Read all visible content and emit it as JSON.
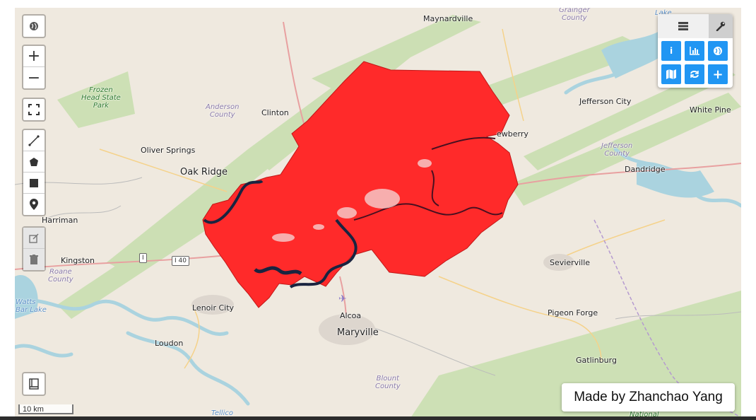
{
  "credit": "Made by Zhanchao Yang",
  "scale_label": "10 km",
  "controls": {
    "basemap": "globe-icon",
    "zoom_in": "+",
    "zoom_out": "−",
    "fullscreen": "fullscreen-icon",
    "draw_tools": [
      "polyline-icon",
      "polygon-icon",
      "rectangle-icon",
      "marker-icon"
    ],
    "edit_tools": [
      "edit-icon",
      "trash-icon"
    ],
    "print": "print-icon"
  },
  "toolbox": {
    "tabs": [
      "layers-icon",
      "wrench-icon"
    ],
    "tools": [
      "info-icon",
      "chart-icon",
      "globe-icon",
      "map-icon",
      "refresh-icon",
      "plus-icon"
    ]
  },
  "overlay_color": "#ff2a2a",
  "places": {
    "maynardville": "Maynardville",
    "grainger": "Grainger\nCounty",
    "lake": "Lake",
    "jefferson_city": "Jefferson City",
    "white_pine": "White Pine",
    "jefferson_county": "Jefferson\nCounty",
    "dandridge": "Dandridge",
    "newberry": "ewberry",
    "frozen_head": "Frozen\nHead State\nPark",
    "anderson": "Anderson\nCounty",
    "clinton": "Clinton",
    "oliver_springs": "Oliver Springs",
    "oak_ridge": "Oak Ridge",
    "harriman": "Harriman",
    "kingston": "Kingston",
    "roane": "Roane\nCounty",
    "watts_bar": "Watts\nBar Lake",
    "lenoir_city": "Lenoir City",
    "loudon": "Loudon",
    "alcoa": "Alcoa",
    "maryville": "Maryville",
    "sevierville": "Sevierville",
    "pigeon_forge": "Pigeon Forge",
    "gatlinburg": "Gatlinburg",
    "blount": "Blount\nCounty",
    "tellico": "Tellico",
    "national": "National"
  },
  "shields": {
    "i1": "I",
    "i40": "I 40"
  }
}
